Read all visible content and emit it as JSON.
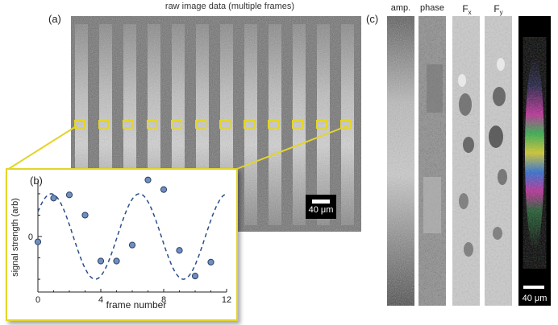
{
  "panel_a": {
    "label": "(a)",
    "title": "raw image data (multiple frames)",
    "scalebar": "40 μm",
    "num_stripes": 12
  },
  "panel_b": {
    "label": "(b)"
  },
  "panel_c": {
    "label": "(c)",
    "strips": [
      {
        "label": "amp.",
        "sub": ""
      },
      {
        "label": "phase",
        "sub": ""
      },
      {
        "label": "F",
        "sub": "x"
      },
      {
        "label": "F",
        "sub": "y"
      },
      {
        "label": "",
        "sub": ""
      }
    ],
    "scalebar": "40 μm"
  },
  "chart_data": {
    "type": "scatter",
    "xlabel": "frame number",
    "ylabel": "signal strength (arb)",
    "xlim": [
      0,
      12
    ],
    "ylim": [
      -2.6,
      2.6
    ],
    "xticks": [
      0,
      4,
      8,
      12
    ],
    "yticks": [
      0
    ],
    "points": {
      "x": [
        0,
        1,
        2,
        3,
        4,
        5,
        6,
        7,
        8,
        9,
        10,
        11
      ],
      "y": [
        -0.25,
        1.8,
        1.95,
        1.0,
        -1.15,
        -1.15,
        -0.4,
        2.65,
        2.2,
        -0.65,
        -1.85,
        -1.2
      ]
    },
    "fit": {
      "style": "dashed",
      "amplitude": 2.0,
      "period": 5.6,
      "phase_frame": 0.85,
      "offset": 0
    }
  }
}
